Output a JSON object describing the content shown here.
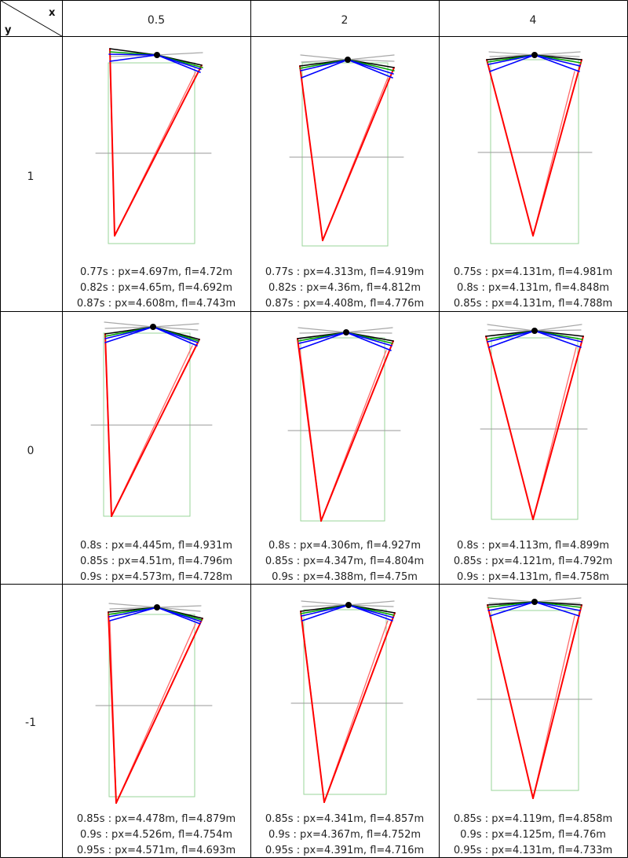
{
  "corner": {
    "x_label": "x",
    "y_label": "y"
  },
  "columns": [
    "0.5",
    "2",
    "4"
  ],
  "rows": [
    "1",
    "0",
    "-1"
  ],
  "colors": {
    "gray": "#a8a8a8",
    "black": "#000000",
    "green": "#00a000",
    "blue": "#0000ff",
    "red": "#ff0000",
    "light_red": "#ff6b6b",
    "box_green": "#9ad49a",
    "axis_gray": "#9a9a9a"
  },
  "cells": [
    [
      {
        "captions": [
          "0.77s : px=4.697m, fl=4.72m",
          "0.82s : px=4.65m, fl=4.692m",
          "0.87s : px=4.608m, fl=4.743m"
        ]
      },
      {
        "captions": [
          "0.77s : px=4.313m, fl=4.919m",
          "0.82s : px=4.36m, fl=4.812m",
          "0.87s : px=4.408m, fl=4.776m"
        ]
      },
      {
        "captions": [
          "0.75s : px=4.131m, fl=4.981m",
          "0.8s : px=4.131m, fl=4.848m",
          "0.85s : px=4.131m, fl=4.788m"
        ]
      }
    ],
    [
      {
        "captions": [
          "0.8s : px=4.445m, fl=4.931m",
          "0.85s : px=4.51m, fl=4.796m",
          "0.9s : px=4.573m, fl=4.728m"
        ]
      },
      {
        "captions": [
          "0.8s : px=4.306m, fl=4.927m",
          "0.85s : px=4.347m, fl=4.804m",
          "0.9s : px=4.388m, fl=4.75m"
        ]
      },
      {
        "captions": [
          "0.8s : px=4.113m, fl=4.899m",
          "0.85s : px=4.121m, fl=4.792m",
          "0.9s : px=4.131m, fl=4.758m"
        ]
      }
    ],
    [
      {
        "captions": [
          "0.85s : px=4.478m, fl=4.879m",
          "0.9s : px=4.526m, fl=4.754m",
          "0.95s : px=4.571m, fl=4.693m"
        ]
      },
      {
        "captions": [
          "0.85s : px=4.341m, fl=4.857m",
          "0.9s : px=4.367m, fl=4.752m",
          "0.95s : px=4.391m, fl=4.716m"
        ]
      },
      {
        "captions": [
          "0.85s : px=4.119m, fl=4.858m",
          "0.9s : px=4.125m, fl=4.76m",
          "0.95s : px=4.131m, fl=4.733m"
        ]
      }
    ]
  ]
}
